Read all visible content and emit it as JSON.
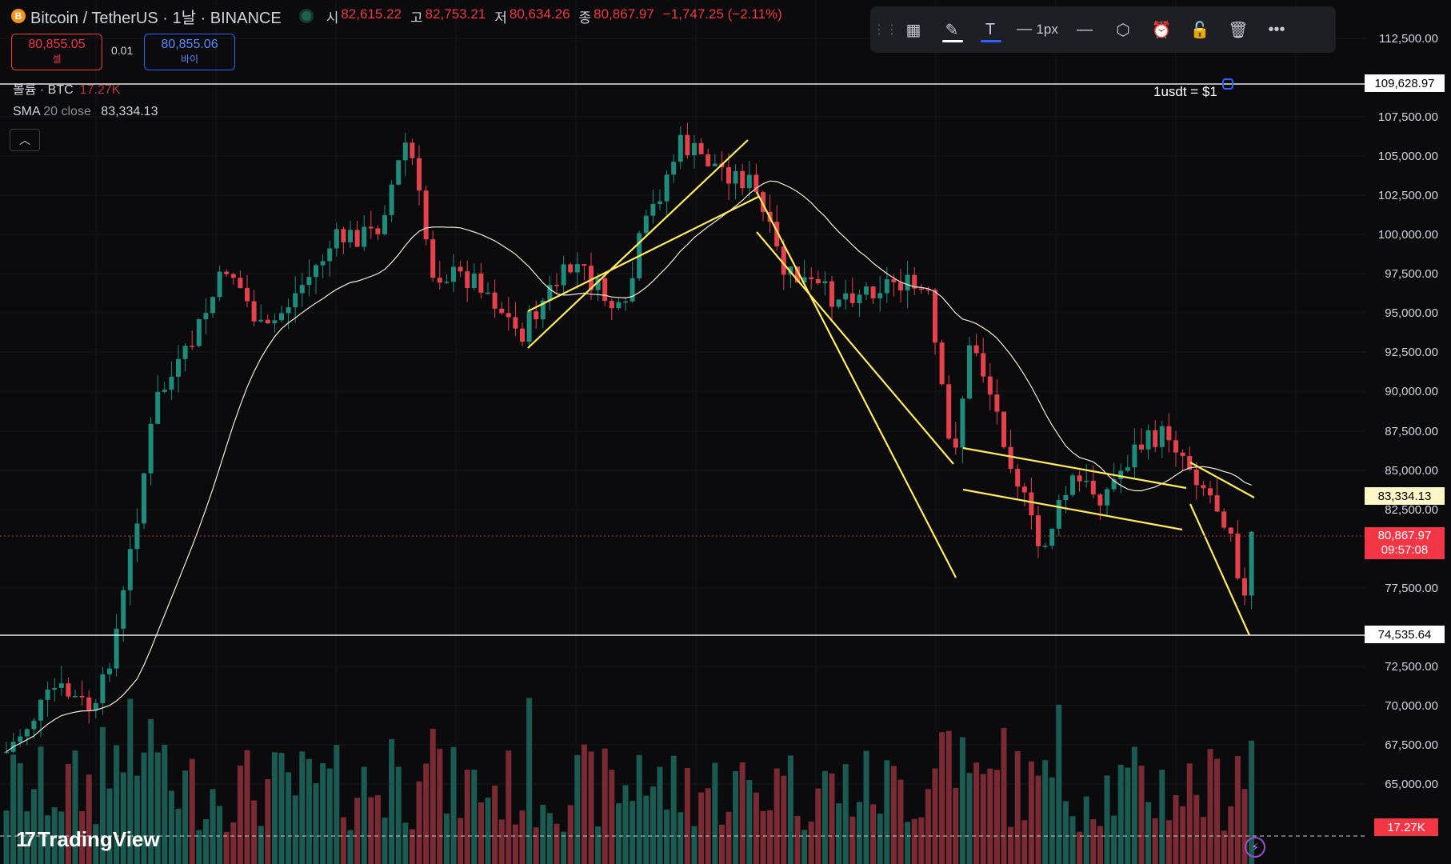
{
  "header": {
    "coin_icon": "B",
    "title": "Bitcoin / TetherUS · 1날 · BINANCE",
    "open_label": "시",
    "open_value": "82,615.22",
    "high_label": "고",
    "high_value": "82,753.21",
    "low_label": "저",
    "low_value": "80,634.26",
    "close_label": "종",
    "close_value": "80,867.97",
    "change_value": "−1,747.25 (−2.11%)"
  },
  "trade": {
    "sell_price": "80,855.05",
    "sell_label": "셀",
    "spread": "0.01",
    "buy_price": "80,855.06",
    "buy_label": "바이"
  },
  "indicators": {
    "volume_label": "볼륨 · BTC",
    "volume_value": "17.27K",
    "sma_name": "SMA",
    "sma_params": "20 close",
    "sma_value": "83,334.13",
    "collapse_icon": "chevron-up-icon"
  },
  "toolbar": {
    "items": [
      "drag-handle-icon",
      "object-tree-icon",
      "pencil-icon",
      "text-icon",
      "line-style-icon",
      "line-width",
      "line-end-icon",
      "settings-hex-icon",
      "alert-add-icon",
      "lock-icon",
      "trash-icon",
      "more-icon"
    ],
    "line_width_label": "1px",
    "pencil_color": "#ffffff",
    "text_color": "#2962ff"
  },
  "axis": {
    "ticks": [
      "112,500.00",
      "107,500.00",
      "105,000.00",
      "102,500.00",
      "100,000.00",
      "97,500.00",
      "95,000.00",
      "92,500.00",
      "90,000.00",
      "87,500.00",
      "85,000.00",
      "82,500.00",
      "77,500.00",
      "72,500.00",
      "70,000.00",
      "67,500.00",
      "65,000.00"
    ],
    "horizontal_line_value": "109,628.97",
    "sma_tag": "83,334.13",
    "last_price": "80,867.97",
    "countdown": "09:57:08",
    "support_value": "74,535.64",
    "volume_tag": "17.27K"
  },
  "annotation_text": "1usdt = $1",
  "branding": {
    "name": "TradingView"
  },
  "colors": {
    "up": "#1f8b7a",
    "down": "#e5414d",
    "sma": "#f3ecd6",
    "drawing": "#ffeb5c",
    "background": "#0b0b0e"
  }
}
